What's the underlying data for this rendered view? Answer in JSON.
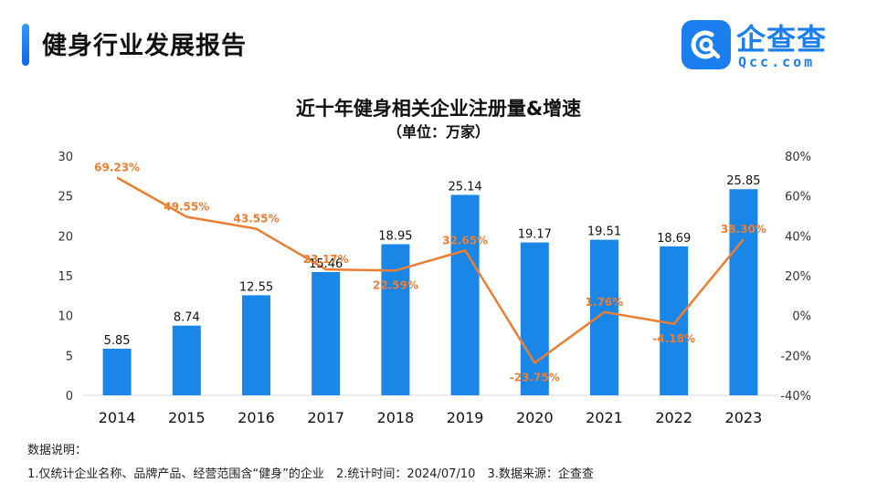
{
  "page": {
    "title": "健身行业发展报告"
  },
  "brand": {
    "name": "企查查",
    "domain": "Qcc.com",
    "color": "#1b7ff0"
  },
  "notes": {
    "label": "数据说明：",
    "items": [
      "1.仅统计企业名称、品牌产品、经营范围含“健身”的企业",
      "2.统计时间：2024/07/10",
      "3.数据来源：企查查"
    ]
  },
  "chart_data": {
    "type": "bar",
    "title": "近十年健身相关企业注册量&增速",
    "subtitle": "（单位：万家）",
    "categories": [
      "2014",
      "2015",
      "2016",
      "2017",
      "2018",
      "2019",
      "2020",
      "2021",
      "2022",
      "2023"
    ],
    "series": [
      {
        "name": "注册量",
        "type": "bar",
        "axis": "left",
        "color": "#1a87e8",
        "values": [
          5.85,
          8.74,
          12.55,
          15.46,
          18.95,
          25.14,
          19.17,
          19.51,
          18.69,
          25.85
        ],
        "labels": [
          "5.85",
          "8.74",
          "12.55",
          "15.46",
          "18.95",
          "25.14",
          "19.17",
          "19.51",
          "18.69",
          "25.85"
        ]
      },
      {
        "name": "增速",
        "type": "line",
        "axis": "right",
        "color": "#ed7d31",
        "values": [
          69.23,
          49.55,
          43.55,
          23.17,
          22.59,
          32.65,
          -23.75,
          1.76,
          -4.18,
          38.3
        ],
        "labels": [
          "69.23%",
          "49.55%",
          "43.55%",
          "23.17%",
          "22.59%",
          "32.65%",
          "-23.75%",
          "1.76%",
          "-4.18%",
          "38.30%"
        ]
      }
    ],
    "y_left": {
      "min": 0,
      "max": 30,
      "ticks": [
        "0",
        "5",
        "10",
        "15",
        "20",
        "25",
        "30"
      ]
    },
    "y_right": {
      "min": -40,
      "max": 80,
      "ticks": [
        "-40%",
        "-20%",
        "0%",
        "20%",
        "40%",
        "60%",
        "80%"
      ]
    },
    "grid": false,
    "legend": "none"
  }
}
